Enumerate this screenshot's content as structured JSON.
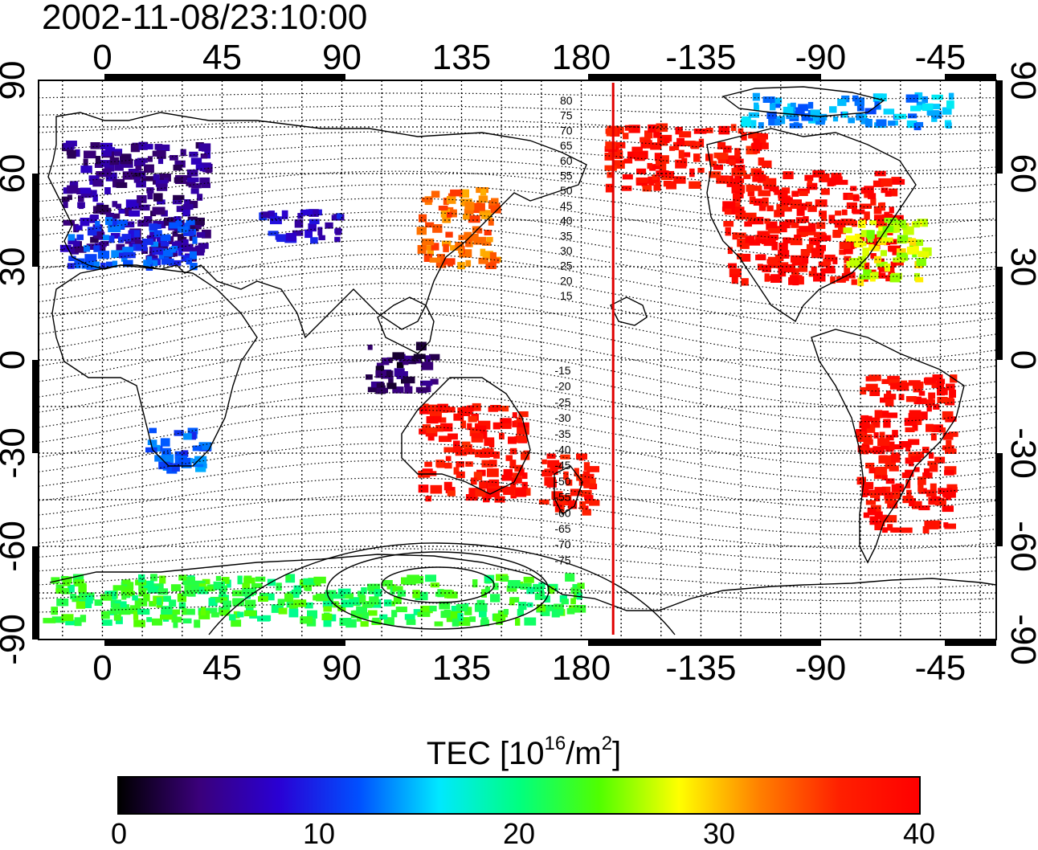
{
  "title": "2002-11-08/23:10:00",
  "map": {
    "top_lon_labels": [
      "0",
      "45",
      "90",
      "135",
      "180",
      "-135",
      "-90",
      "-45"
    ],
    "bottom_lon_labels": [
      "0",
      "45",
      "90",
      "135",
      "180",
      "-135",
      "-90",
      "-45"
    ],
    "left_lat_labels": [
      "90",
      "60",
      "30",
      "0",
      "-30",
      "-60",
      "-90"
    ],
    "right_lat_labels": [
      "90",
      "60",
      "30",
      "0",
      "-30",
      "-60",
      "-90"
    ],
    "lon_ticks": [
      0,
      45,
      90,
      135,
      180,
      225,
      270,
      315
    ],
    "lat_ticks": [
      90,
      60,
      30,
      0,
      -30,
      -60,
      -90
    ],
    "lon_range": [
      -24,
      336
    ],
    "lat_range": [
      -90,
      90
    ],
    "terminator_line_color": "#e00000",
    "terminator_lon": 192,
    "north_contour_labels": [
      "80",
      "75",
      "70",
      "65",
      "60",
      "55",
      "50",
      "45",
      "40",
      "35",
      "30",
      "25",
      "20",
      "15"
    ],
    "south_contour_labels": [
      "-15",
      "-20",
      "-25",
      "-30",
      "-35",
      "-40",
      "-45",
      "-50",
      "-55",
      "-60",
      "-65",
      "-70",
      "-75"
    ]
  },
  "colorbar": {
    "title_prefix": "TEC  [10",
    "title_exp1": "16",
    "title_mid": "/m",
    "title_exp2": "2",
    "title_suffix": "]",
    "tick_labels": [
      "0",
      "10",
      "20",
      "30",
      "40"
    ],
    "tick_values": [
      0,
      10,
      20,
      30,
      40
    ],
    "range": [
      0,
      40
    ],
    "colormap_stops": [
      "#000000",
      "#3a007a",
      "#2a00d4",
      "#0050ff",
      "#00e8ff",
      "#00ff80",
      "#50ff00",
      "#ffff00",
      "#ff8000",
      "#ff2000",
      "#ff0000"
    ]
  },
  "chart_data": {
    "type": "heatmap",
    "title": "2002-11-08/23:10:00",
    "colorbar_label": "TEC  [10^16/m^2]",
    "value_range": [
      0,
      40
    ],
    "regions": [
      {
        "lon": [
          -14,
          40
        ],
        "lat": [
          32,
          70
        ],
        "tec": 5
      },
      {
        "lon": [
          -12,
          35
        ],
        "lat": [
          30,
          45
        ],
        "tec": 11
      },
      {
        "lon": [
          60,
          90
        ],
        "lat": [
          38,
          48
        ],
        "tec": 8
      },
      {
        "lon": [
          18,
          40
        ],
        "lat": [
          -36,
          -22
        ],
        "tec": 12
      },
      {
        "lon": [
          120,
          148
        ],
        "lat": [
          30,
          55
        ],
        "tec": 33
      },
      {
        "lon": [
          120,
          160
        ],
        "lat": [
          -45,
          -15
        ],
        "tec": 38
      },
      {
        "lon": [
          165,
          185
        ],
        "lat": [
          -50,
          -30
        ],
        "tec": 38
      },
      {
        "lon": [
          -125,
          -60
        ],
        "lat": [
          25,
          60
        ],
        "tec": 39
      },
      {
        "lon": [
          -80,
          -50
        ],
        "lat": [
          25,
          45
        ],
        "tec": 27
      },
      {
        "lon": [
          -75,
          -40
        ],
        "lat": [
          -55,
          -5
        ],
        "tec": 39
      },
      {
        "lon": [
          190,
          250
        ],
        "lat": [
          55,
          75
        ],
        "tec": 38
      },
      {
        "lon": [
          -120,
          -40
        ],
        "lat": [
          75,
          85
        ],
        "tec": 14
      },
      {
        "lon": [
          -20,
          180
        ],
        "lat": [
          -85,
          -70
        ],
        "tec": 22
      },
      {
        "lon": [
          100,
          125
        ],
        "lat": [
          -10,
          5
        ],
        "tec": 3
      }
    ]
  }
}
